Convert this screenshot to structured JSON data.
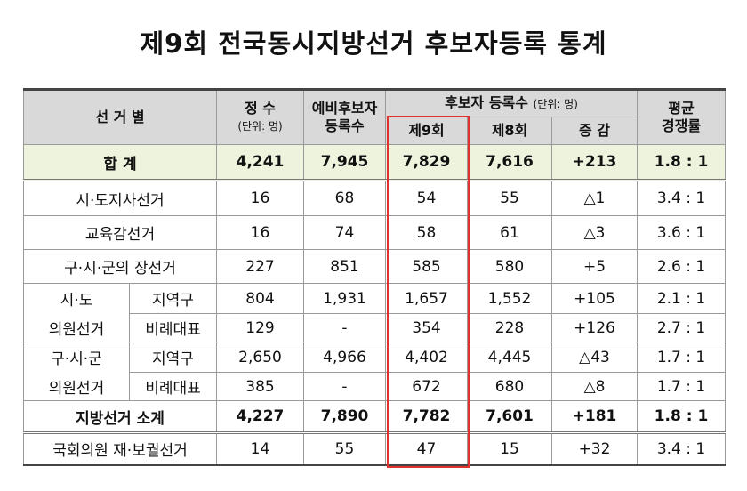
{
  "title": "제9회 전국동시지방선거 후보자등록 통계",
  "header": {
    "col_election": "선 거 별",
    "col_seats": "정  수",
    "col_seats_unit": "(단위: 명)",
    "col_prelim": "예비후보자",
    "col_prelim2": "등록수",
    "col_registered": "후보자 등록수",
    "col_registered_unit": "(단위: 명)",
    "col_9th": "제9회",
    "col_8th": "제8회",
    "col_change": "증 감",
    "col_ratio": "평균",
    "col_ratio2": "경쟁률"
  },
  "rows": {
    "total": {
      "label": "합      계",
      "seats": "4,241",
      "prelim": "7,945",
      "r9": "7,829",
      "r8": "7,616",
      "change": "+213",
      "ratio": "1.8 : 1"
    },
    "mayor": {
      "label": "시·도지사선거",
      "seats": "16",
      "prelim": "68",
      "r9": "54",
      "r8": "55",
      "change": "△1",
      "ratio": "3.4 : 1"
    },
    "edu": {
      "label": "교육감선거",
      "seats": "16",
      "prelim": "74",
      "r9": "58",
      "r8": "61",
      "change": "△3",
      "ratio": "3.6 : 1"
    },
    "local_head": {
      "label": "구·시·군의 장선거",
      "seats": "227",
      "prelim": "851",
      "r9": "585",
      "r8": "580",
      "change": "+5",
      "ratio": "2.6 : 1"
    },
    "prov_council": {
      "group1": "시·도",
      "group2": "의원선거"
    },
    "prov_district": {
      "label": "지역구",
      "seats": "804",
      "prelim": "1,931",
      "r9": "1,657",
      "r8": "1,552",
      "change": "+105",
      "ratio": "2.1 : 1"
    },
    "prov_pr": {
      "label": "비례대표",
      "seats": "129",
      "prelim": "-",
      "r9": "354",
      "r8": "228",
      "change": "+126",
      "ratio": "2.7 : 1"
    },
    "city_council": {
      "group1": "구·시·군",
      "group2": "의원선거"
    },
    "city_district": {
      "label": "지역구",
      "seats": "2,650",
      "prelim": "4,966",
      "r9": "4,402",
      "r8": "4,445",
      "change": "△43",
      "ratio": "1.7 : 1"
    },
    "city_pr": {
      "label": "비례대표",
      "seats": "385",
      "prelim": "-",
      "r9": "672",
      "r8": "680",
      "change": "△8",
      "ratio": "1.7 : 1"
    },
    "local_subtotal": {
      "label": "지방선거 소계",
      "seats": "4,227",
      "prelim": "7,890",
      "r9": "7,782",
      "r8": "7,601",
      "change": "+181",
      "ratio": "1.8 : 1"
    },
    "byelection": {
      "label": "국회의원 재·보궐선거",
      "seats": "14",
      "prelim": "55",
      "r9": "47",
      "r8": "15",
      "change": "+32",
      "ratio": "3.4 : 1"
    }
  },
  "colors": {
    "header_bg": "#d9d9d9",
    "total_bg": "#eef3dd",
    "highlight_border": "#e0312f"
  }
}
